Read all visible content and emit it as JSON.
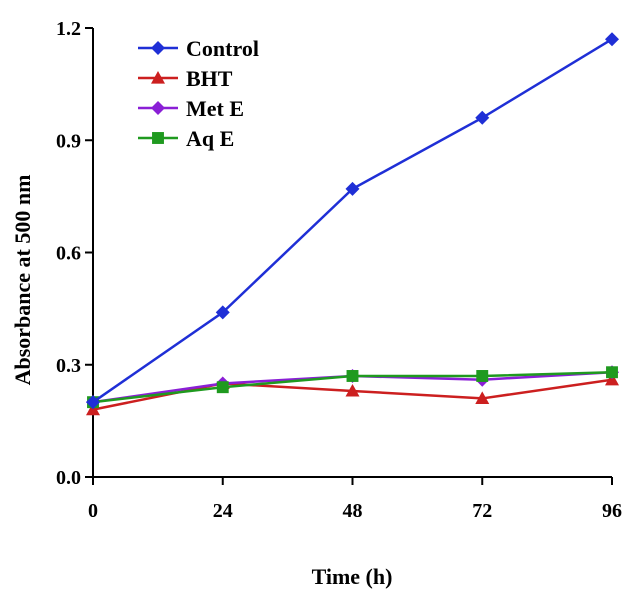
{
  "chart_data": {
    "type": "line",
    "xlabel": "Time (h)",
    "ylabel": "Absorbance at 500 nm",
    "x": [
      0,
      24,
      48,
      72,
      96
    ],
    "x_ticks": [
      "0",
      "24",
      "48",
      "72",
      "96"
    ],
    "y_ticks": [
      "0.0",
      "0.3",
      "0.6",
      "0.9",
      "1.2"
    ],
    "xlim": [
      0,
      96
    ],
    "ylim": [
      0,
      1.2
    ],
    "grid": false,
    "legend_position": "top-left",
    "series": [
      {
        "name": "Control",
        "color": "#1f2fd6",
        "marker": "diamond",
        "values": [
          0.2,
          0.44,
          0.77,
          0.96,
          1.17
        ]
      },
      {
        "name": "BHT",
        "color": "#cc1f1f",
        "marker": "triangle",
        "values": [
          0.18,
          0.25,
          0.23,
          0.21,
          0.26
        ]
      },
      {
        "name": "Met E",
        "color": "#8a1fd6",
        "marker": "diamond",
        "values": [
          0.2,
          0.25,
          0.27,
          0.26,
          0.28
        ]
      },
      {
        "name": "Aq E",
        "color": "#1f9a1f",
        "marker": "square",
        "values": [
          0.2,
          0.24,
          0.27,
          0.27,
          0.28
        ]
      }
    ]
  }
}
